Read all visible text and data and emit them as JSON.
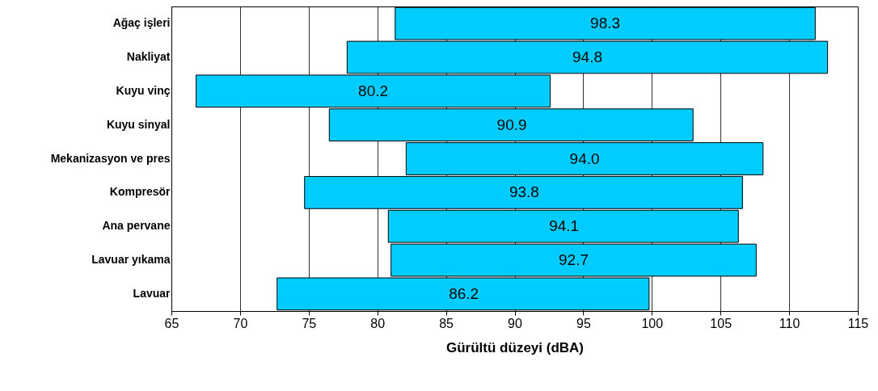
{
  "chart_data": {
    "type": "bar",
    "orientation": "horizontal",
    "categories": [
      "Ağaç işleri",
      "Nakliyat",
      "Kuyu vinç",
      "Kuyu sinyal",
      "Mekanizasyon ve pres",
      "Kompresör",
      "Ana pervane",
      "Lavuar yıkama",
      "Lavuar"
    ],
    "base": [
      81.3,
      77.8,
      66.8,
      76.5,
      82.1,
      74.7,
      80.8,
      81.0,
      72.7
    ],
    "values": [
      30.6,
      35.0,
      25.8,
      26.5,
      26.0,
      31.9,
      25.5,
      26.6,
      27.1
    ],
    "annotations": [
      {
        "text": "98.3",
        "x": 96.6,
        "y": "Ağaç işleri"
      },
      {
        "text": "94.8",
        "x": 95.3,
        "y": "Nakliyat"
      },
      {
        "text": "80.2",
        "x": 79.7,
        "y": "Kuyu vinç"
      },
      {
        "text": "90.9",
        "x": 89.8,
        "y": "Kuyu sinyal"
      },
      {
        "text": "94.0",
        "x": 95.1,
        "y": "Mekanizasyon ve pres"
      },
      {
        "text": "93.8",
        "x": 90.7,
        "y": "Kompresör"
      },
      {
        "text": "94.1",
        "x": 93.6,
        "y": "Ana pervane"
      },
      {
        "text": "92.7",
        "x": 94.3,
        "y": "Lavuar yıkama"
      },
      {
        "text": "86.2",
        "x": 86.3,
        "y": "Lavuar"
      }
    ],
    "color": "#00ccff",
    "xlabel": "Gürültü düzeyi (dBA)",
    "xlim": [
      65,
      115
    ],
    "xticks": [
      65,
      70,
      75,
      80,
      85,
      90,
      95,
      100,
      105,
      110,
      115
    ],
    "grid": "x"
  }
}
